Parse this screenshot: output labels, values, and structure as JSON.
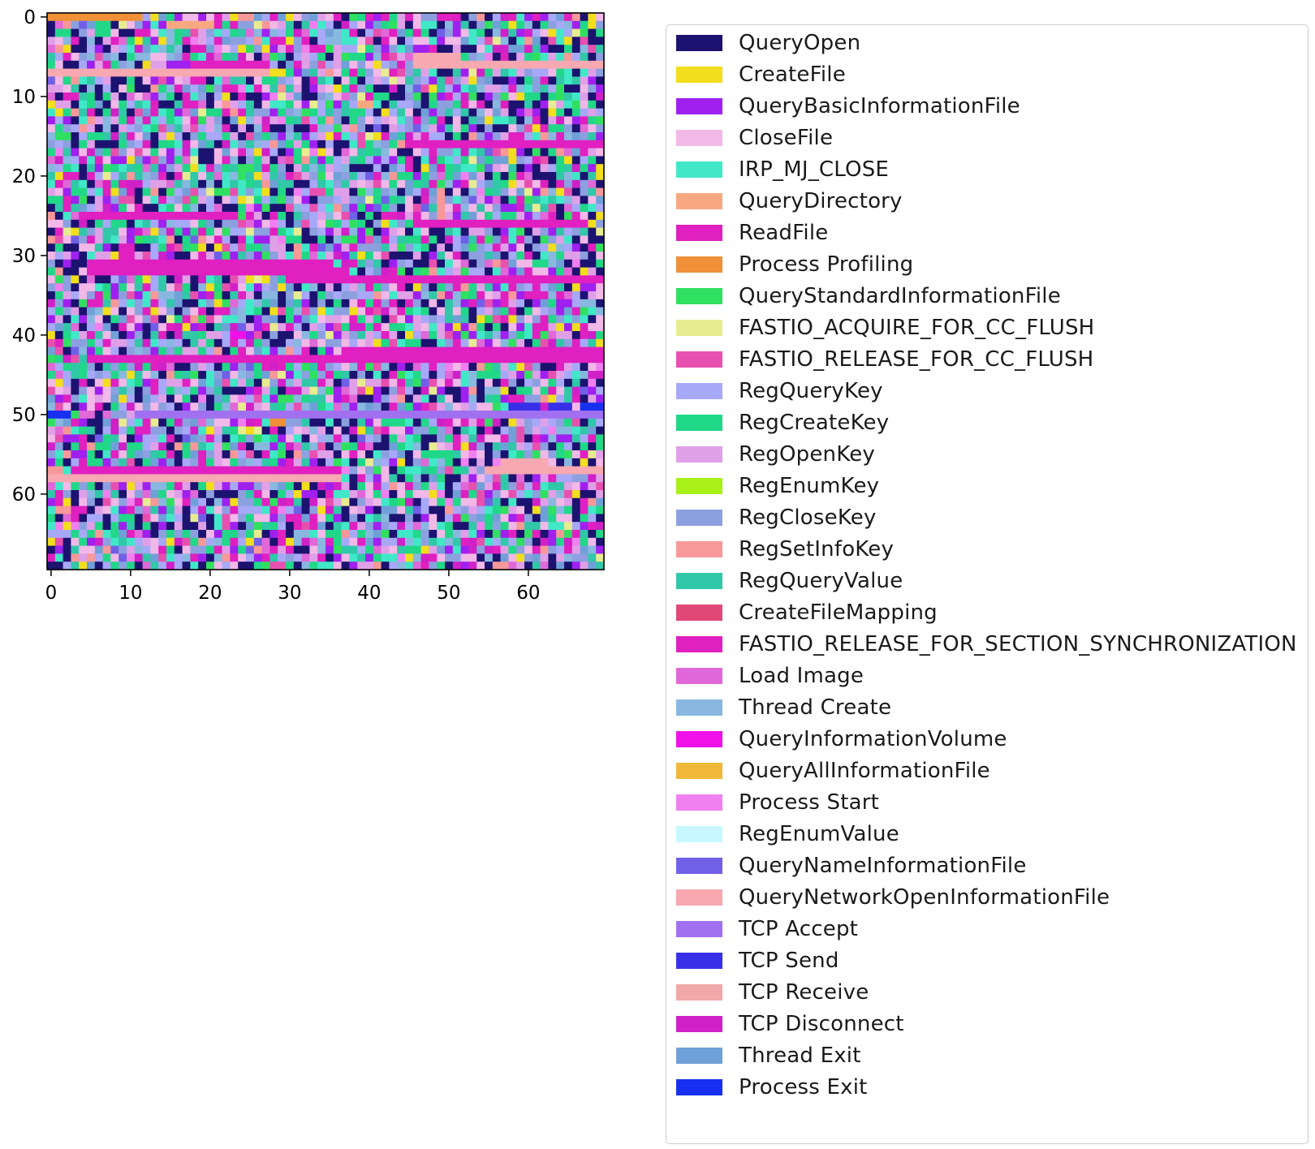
{
  "chart_data": {
    "type": "heatmap",
    "grid": false,
    "legend_placement": "right",
    "rows": 70,
    "cols": 70,
    "xlim": [
      -0.5,
      69.5
    ],
    "ylim": [
      69.5,
      -0.5
    ],
    "xticks": [
      0,
      10,
      20,
      30,
      40,
      50,
      60
    ],
    "yticks": [
      0,
      10,
      20,
      30,
      40,
      50,
      60
    ],
    "categories": [
      {
        "name": "QueryOpen",
        "color": "#1c1270"
      },
      {
        "name": "CreateFile",
        "color": "#f2de1c"
      },
      {
        "name": "QueryBasicInformationFile",
        "color": "#a020f0"
      },
      {
        "name": "CloseFile",
        "color": "#f2b8e8"
      },
      {
        "name": "IRP_MJ_CLOSE",
        "color": "#40e8c8"
      },
      {
        "name": "QueryDirectory",
        "color": "#f8a880"
      },
      {
        "name": "ReadFile",
        "color": "#e020c0"
      },
      {
        "name": "Process Profiling",
        "color": "#f09038"
      },
      {
        "name": "QueryStandardInformationFile",
        "color": "#30e060"
      },
      {
        "name": "FASTIO_ACQUIRE_FOR_CC_FLUSH",
        "color": "#e8ec90"
      },
      {
        "name": "FASTIO_RELEASE_FOR_CC_FLUSH",
        "color": "#e850b0"
      },
      {
        "name": "RegQueryKey",
        "color": "#a8a8f8"
      },
      {
        "name": "RegCreateKey",
        "color": "#20d888"
      },
      {
        "name": "RegOpenKey",
        "color": "#e0a0e8"
      },
      {
        "name": "RegEnumKey",
        "color": "#a8f018"
      },
      {
        "name": "RegCloseKey",
        "color": "#8ca0e0"
      },
      {
        "name": "RegSetInfoKey",
        "color": "#f89898"
      },
      {
        "name": "RegQueryValue",
        "color": "#30c8a8"
      },
      {
        "name": "CreateFileMapping",
        "color": "#e04878"
      },
      {
        "name": "FASTIO_RELEASE_FOR_SECTION_SYNCHRONIZATION",
        "color": "#e020c0"
      },
      {
        "name": "Load Image",
        "color": "#e068d8"
      },
      {
        "name": "Thread Create",
        "color": "#88b8e0"
      },
      {
        "name": "QueryInformationVolume",
        "color": "#f010e8"
      },
      {
        "name": "QueryAllInformationFile",
        "color": "#f0b838"
      },
      {
        "name": "Process Start",
        "color": "#f080f0"
      },
      {
        "name": "RegEnumValue",
        "color": "#c8f8ff"
      },
      {
        "name": "QueryNameInformationFile",
        "color": "#7060e8"
      },
      {
        "name": "QueryNetworkOpenInformationFile",
        "color": "#f8a8b0"
      },
      {
        "name": "TCP Accept",
        "color": "#a070f0"
      },
      {
        "name": "TCP Send",
        "color": "#3830e8"
      },
      {
        "name": "TCP Receive",
        "color": "#f0a8a8"
      },
      {
        "name": "TCP Disconnect",
        "color": "#d020c8"
      },
      {
        "name": "Thread Exit",
        "color": "#70a0d8"
      },
      {
        "name": "Process Exit",
        "color": "#1830f0"
      }
    ],
    "row_bands": [
      {
        "row": 0,
        "from": 0,
        "to": 11,
        "category": "Process Profiling"
      },
      {
        "row": 1,
        "from": 15,
        "to": 20,
        "category": "QueryDirectory"
      },
      {
        "row": 5,
        "from": 46,
        "to": 51,
        "category": "QueryNetworkOpenInformationFile"
      },
      {
        "row": 6,
        "from": 18,
        "to": 27,
        "category": "ReadFile"
      },
      {
        "row": 6,
        "from": 46,
        "to": 69,
        "category": "QueryNetworkOpenInformationFile"
      },
      {
        "row": 7,
        "from": 0,
        "to": 27,
        "category": "QueryNetworkOpenInformationFile"
      },
      {
        "row": 11,
        "from": 39,
        "to": 40,
        "category": "QueryDirectory"
      },
      {
        "row": 16,
        "from": 45,
        "to": 69,
        "category": "ReadFile"
      },
      {
        "row": 25,
        "from": 4,
        "to": 23,
        "category": "ReadFile"
      },
      {
        "row": 26,
        "from": 46,
        "to": 67,
        "category": "ReadFile"
      },
      {
        "row": 31,
        "from": 5,
        "to": 35,
        "category": "ReadFile"
      },
      {
        "row": 32,
        "from": 5,
        "to": 36,
        "category": "ReadFile"
      },
      {
        "row": 33,
        "from": 30,
        "to": 69,
        "category": "ReadFile"
      },
      {
        "row": 40,
        "from": 23,
        "to": 24,
        "category": "QueryInformationVolume"
      },
      {
        "row": 42,
        "from": 37,
        "to": 69,
        "category": "ReadFile"
      },
      {
        "row": 43,
        "from": 5,
        "to": 69,
        "category": "ReadFile"
      },
      {
        "row": 49,
        "from": 58,
        "to": 61,
        "category": "TCP Send"
      },
      {
        "row": 49,
        "from": 63,
        "to": 65,
        "category": "TCP Send"
      },
      {
        "row": 49,
        "from": 67,
        "to": 69,
        "category": "Process Exit"
      },
      {
        "row": 50,
        "from": 0,
        "to": 2,
        "category": "Process Exit"
      },
      {
        "row": 50,
        "from": 11,
        "to": 69,
        "category": "TCP Accept"
      },
      {
        "row": 51,
        "from": 28,
        "to": 29,
        "category": "Process Profiling"
      },
      {
        "row": 56,
        "from": 57,
        "to": 62,
        "category": "QueryNetworkOpenInformationFile"
      },
      {
        "row": 57,
        "from": 3,
        "to": 36,
        "category": "ReadFile"
      },
      {
        "row": 57,
        "from": 55,
        "to": 69,
        "category": "QueryNetworkOpenInformationFile"
      },
      {
        "row": 58,
        "from": 0,
        "to": 36,
        "category": "QueryNetworkOpenInformationFile"
      }
    ]
  },
  "legend": {
    "labels": [
      "QueryOpen",
      "CreateFile",
      "QueryBasicInformationFile",
      "CloseFile",
      "IRP_MJ_CLOSE",
      "QueryDirectory",
      "ReadFile",
      "Process Profiling",
      "QueryStandardInformationFile",
      "FASTIO_ACQUIRE_FOR_CC_FLUSH",
      "FASTIO_RELEASE_FOR_CC_FLUSH",
      "RegQueryKey",
      "RegCreateKey",
      "RegOpenKey",
      "RegEnumKey",
      "RegCloseKey",
      "RegSetInfoKey",
      "RegQueryValue",
      "CreateFileMapping",
      "FASTIO_RELEASE_FOR_SECTION_SYNCHRONIZATION",
      "Load Image",
      "Thread Create",
      "QueryInformationVolume",
      "QueryAllInformationFile",
      "Process Start",
      "RegEnumValue",
      "QueryNameInformationFile",
      "QueryNetworkOpenInformationFile",
      "TCP Accept",
      "TCP Send",
      "TCP Receive",
      "TCP Disconnect",
      "Thread Exit",
      "Process Exit"
    ]
  }
}
